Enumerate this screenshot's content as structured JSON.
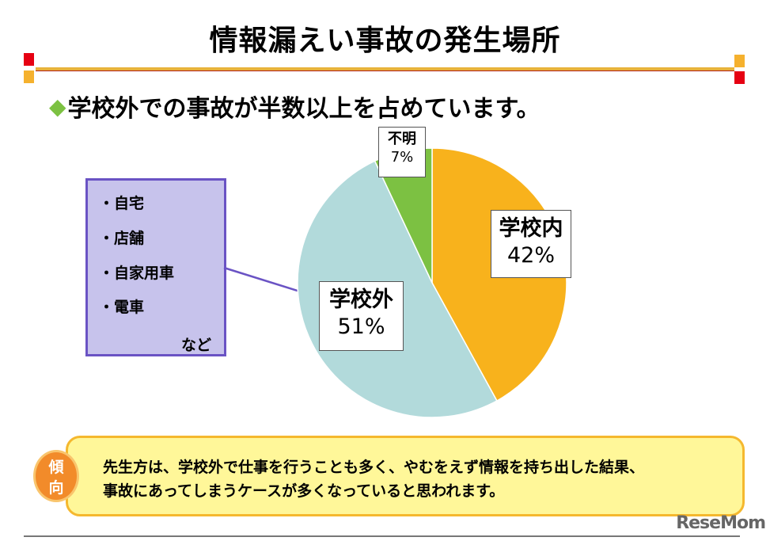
{
  "title": "情報漏えい事故の発生場所",
  "subtitle": "学校外での事故が半数以上を占めています。",
  "subtitle_bullet_icon": "green-diamond",
  "place_examples": {
    "items": [
      "・自宅",
      "・店舗",
      "・自家用車",
      "・電車"
    ],
    "etc": "など"
  },
  "chart_data": {
    "type": "pie",
    "start": "top",
    "direction": "clockwise",
    "slices": [
      {
        "label": "学校内",
        "value": 42,
        "value_label": "42%",
        "color": "#f8b21c"
      },
      {
        "label": "学校外",
        "value": 51,
        "value_label": "51%",
        "color": "#b2dadb"
      },
      {
        "label": "不明",
        "value": 7,
        "value_label": "7%",
        "color": "#7cc142"
      }
    ]
  },
  "callout": {
    "badge": [
      "傾",
      "向"
    ],
    "text_lines": [
      "先生方は、学校外で仕事を行うことも多く、やむをえず情報を持ち出した結果、",
      "事故にあってしまうケースが多くなっていると思われます。"
    ]
  },
  "watermark": "ReseMom"
}
